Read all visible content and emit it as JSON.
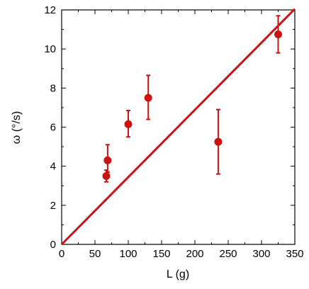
{
  "chart_data": {
    "type": "scatter",
    "xlabel": "L (g)",
    "ylabel": "ω (°/s)",
    "xlim": [
      0,
      350
    ],
    "ylim": [
      0,
      12
    ],
    "x_ticks": [
      0,
      50,
      100,
      150,
      200,
      250,
      300,
      350
    ],
    "y_ticks": [
      0,
      2,
      4,
      6,
      8,
      10,
      12
    ],
    "grid": false,
    "colors": {
      "marker": "#cc1111",
      "fit_line": "#cc1111",
      "axis": "#000000"
    },
    "points": [
      {
        "x": 67,
        "y": 3.5,
        "err_low": 3.2,
        "err_high": 3.8
      },
      {
        "x": 69,
        "y": 4.3,
        "err_low": 3.7,
        "err_high": 5.1
      },
      {
        "x": 100,
        "y": 6.15,
        "err_low": 5.5,
        "err_high": 6.85
      },
      {
        "x": 130,
        "y": 7.5,
        "err_low": 6.4,
        "err_high": 8.65
      },
      {
        "x": 235,
        "y": 5.25,
        "err_low": 3.6,
        "err_high": 6.9
      },
      {
        "x": 325,
        "y": 10.75,
        "err_low": 9.8,
        "err_high": 11.7
      }
    ],
    "fit_line": {
      "x": [
        0,
        350
      ],
      "y": [
        0,
        12.05
      ]
    }
  }
}
